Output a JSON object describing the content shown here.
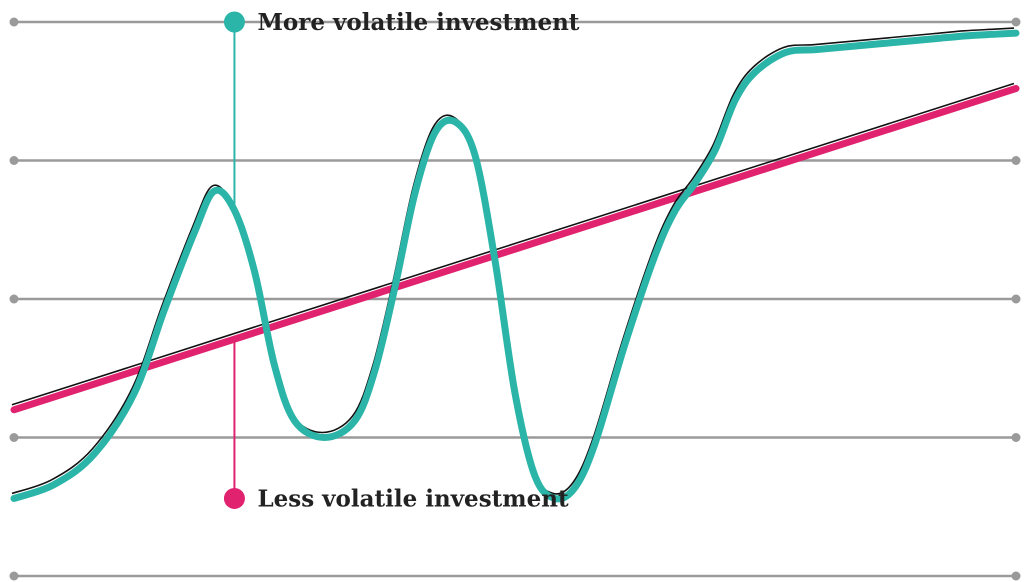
{
  "chart_data": {
    "type": "line",
    "title": "",
    "xlabel": "",
    "ylabel": "",
    "x_range": [
      0,
      100
    ],
    "y_range": [
      0,
      100
    ],
    "grid": true,
    "grid_y": [
      0,
      25,
      50,
      75,
      100
    ],
    "legend": "none",
    "series": [
      {
        "name": "More volatile investment",
        "color": "#2bb5a8",
        "x": [
          0,
          4,
          8,
          12,
          15,
          18,
          20,
          22,
          24,
          26,
          28,
          31,
          34,
          36,
          38,
          40,
          42,
          44,
          46,
          48,
          50,
          52,
          54,
          56,
          58,
          61,
          64,
          66,
          68,
          70,
          72,
          74,
          77,
          80,
          83,
          86,
          89,
          92,
          95,
          98,
          100
        ],
        "y": [
          14,
          16.5,
          22,
          33,
          48,
          62,
          69.5,
          66,
          55,
          38,
          28,
          25,
          28,
          37,
          52,
          69,
          80,
          82,
          76,
          57,
          33,
          18,
          14,
          16,
          24,
          42,
          58,
          66,
          71,
          77,
          86,
          91,
          94.5,
          95,
          95.5,
          96,
          96.5,
          97,
          97.5,
          97.8,
          98
        ]
      },
      {
        "name": "Less volatile investment",
        "color": "#e0226f",
        "x": [
          0,
          100
        ],
        "y": [
          30,
          88
        ]
      }
    ],
    "annotations": [
      {
        "text": "More volatile investment",
        "x": 22,
        "y": 100,
        "color": "#2bb5a8"
      },
      {
        "text": "Less volatile investment",
        "x": 22,
        "y": 14,
        "color": "#e0226f"
      }
    ]
  }
}
